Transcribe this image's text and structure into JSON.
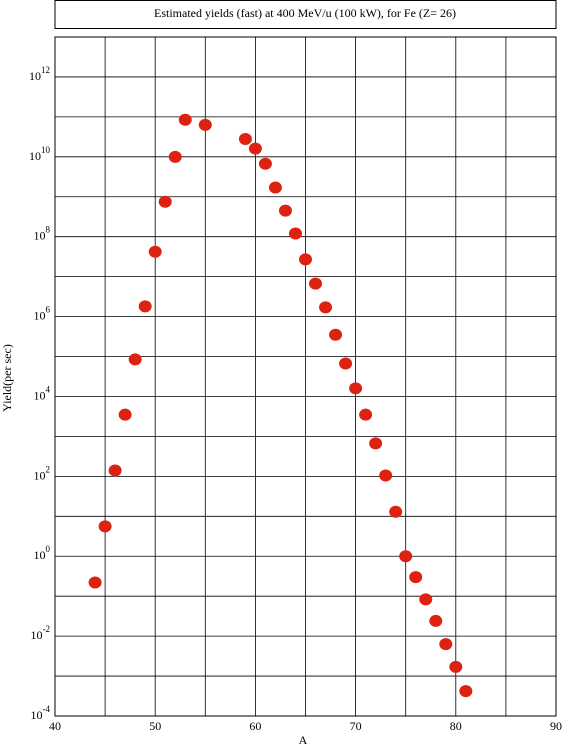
{
  "chart_data": {
    "type": "scatter",
    "title": "Estimated yields (fast) at 400 MeV/u (100 kW), for Fe (Z= 26)",
    "x_label": "A",
    "y_label": "Yield(per sec)",
    "log_y": true,
    "grid": true,
    "color": "#dd2211",
    "xlim": [
      40,
      90
    ],
    "xticks": [
      40,
      50,
      60,
      70,
      80,
      90
    ],
    "xgrid": [
      45,
      55,
      65,
      75,
      85
    ],
    "ylim": [
      0.0001,
      10000000000000
    ],
    "yticks": [
      {
        "value": 0.0001,
        "label": "10",
        "exponent": "-4"
      },
      {
        "value": 0.01,
        "label": "10",
        "exponent": "-2"
      },
      {
        "value": 1,
        "label": "10",
        "exponent": "0"
      },
      {
        "value": 100,
        "label": "10",
        "exponent": "2"
      },
      {
        "value": 10000,
        "label": "10",
        "exponent": "4"
      },
      {
        "value": 1000000,
        "label": "10",
        "exponent": "6"
      },
      {
        "value": 100000000,
        "label": "10",
        "exponent": "8"
      },
      {
        "value": 10000000000,
        "label": "10",
        "exponent": "10"
      },
      {
        "value": 1000000000000,
        "label": "10",
        "exponent": "12"
      }
    ],
    "ygrid": [
      0.001,
      0.1,
      10,
      1000,
      100000,
      10000000,
      1000000000,
      100000000000,
      10000000000000
    ],
    "x": [
      44,
      45,
      46,
      47,
      48,
      49,
      50,
      51,
      52,
      53,
      55,
      59,
      60,
      61,
      62,
      63,
      64,
      65,
      66,
      67,
      68,
      69,
      70,
      71,
      72,
      73,
      74,
      75,
      76,
      77,
      78,
      79,
      80,
      81
    ],
    "values": [
      0.22,
      5.6,
      140,
      3500,
      85000,
      1800000,
      42000000,
      750000000,
      10000000000,
      85000000000,
      63000000000,
      28000000000,
      16000000000,
      6700000000,
      1700000000,
      450000000,
      120000000,
      27000000,
      6700000,
      1700000,
      350000,
      67000,
      16000,
      3500,
      670,
      105,
      13,
      1,
      0.3,
      0.083,
      0.024,
      0.0063,
      0.0017,
      0.00042
    ]
  }
}
